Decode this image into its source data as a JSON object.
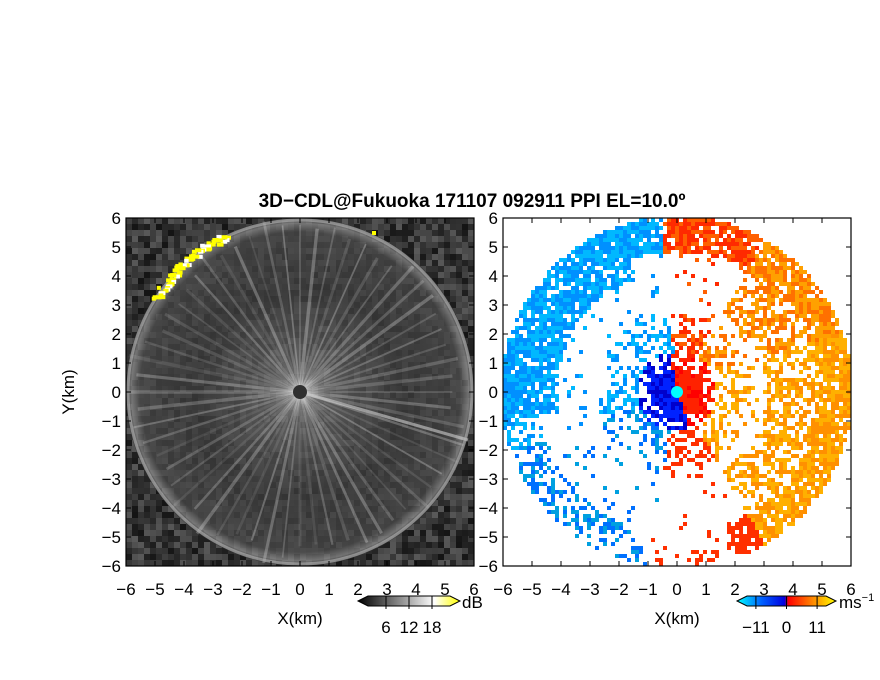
{
  "title": "3D−CDL@Fukuoka 171107 092911 PPI EL=10.0º",
  "chart_data": [
    {
      "type": "heatmap",
      "panel": "reflectivity",
      "xlabel": "X(km)",
      "ylabel": "Y(km)",
      "xlim": [
        -6,
        6
      ],
      "ylim": [
        -6,
        6
      ],
      "x_ticks": [
        "−6",
        "−5",
        "−4",
        "−3",
        "−2",
        "−1",
        "0",
        "1",
        "2",
        "3",
        "4",
        "5",
        "6"
      ],
      "y_ticks": [
        "−6",
        "−5",
        "−4",
        "−3",
        "−2",
        "−1",
        "0",
        "1",
        "2",
        "3",
        "4",
        "5",
        "6"
      ],
      "colorbar": {
        "unit": "dB",
        "ticks": [
          "6",
          "12",
          "18"
        ],
        "range": [
          0,
          24
        ]
      },
      "colormap": [
        "#000000",
        "#ffffff",
        "#ffff00"
      ]
    },
    {
      "type": "heatmap",
      "panel": "doppler-velocity",
      "xlabel": "X(km)",
      "xlim": [
        -6,
        6
      ],
      "ylim": [
        -6,
        6
      ],
      "x_ticks": [
        "−6",
        "−5",
        "−4",
        "−3",
        "−2",
        "−1",
        "0",
        "1",
        "2",
        "3",
        "4",
        "5",
        "6"
      ],
      "y_ticks": [
        "−6",
        "−5",
        "−4",
        "−3",
        "−2",
        "−1",
        "0",
        "1",
        "2",
        "3",
        "4",
        "5",
        "6"
      ],
      "colorbar": {
        "unit": "ms",
        "unit_exponent": "−1",
        "ticks": [
          "−11",
          "0",
          "11"
        ],
        "range": [
          -16,
          16
        ]
      },
      "colormap": [
        "#00ffff",
        "#0060ff",
        "#0000e0",
        "#ff0000",
        "#ff8000",
        "#ffff00"
      ]
    }
  ]
}
